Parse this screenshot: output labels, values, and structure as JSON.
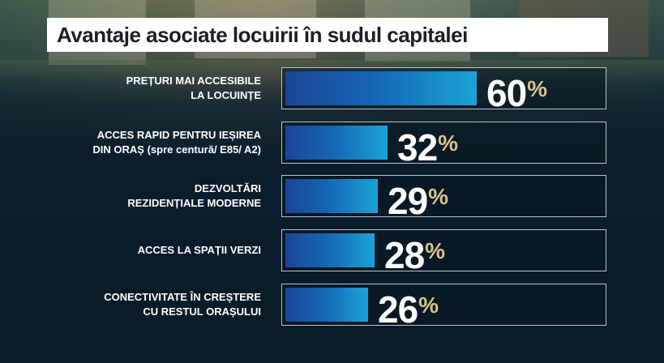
{
  "title": "Avantaje asociate locuirii în sudul capitalei",
  "colors": {
    "bar_start": "#1b4596",
    "bar_end": "#1aa3d6",
    "percent_sign": "#d8c48e",
    "background": "#0b1d2b"
  },
  "chart_data": {
    "type": "bar",
    "orientation": "horizontal",
    "title": "Avantaje asociate locuirii în sudul capitalei",
    "unit": "%",
    "ylim": [
      0,
      100
    ],
    "categories": [
      {
        "line1": "PREȚURI MAI ACCESIBILE",
        "line2": "LA LOCUINȚE",
        "line2_extra": ""
      },
      {
        "line1": "ACCES RAPID PENTRU IEȘIREA",
        "line2": "DIN ORAȘ",
        "line2_extra": " (spre centură/ E85/ A2)"
      },
      {
        "line1": "DEZVOLTĂRI",
        "line2": "REZIDENȚIALE MODERNE",
        "line2_extra": ""
      },
      {
        "line1": "ACCES LA SPAȚII VERZI",
        "line2": "",
        "line2_extra": ""
      },
      {
        "line1": "CONECTIVITATE ÎN CREȘTERE",
        "line2": "CU RESTUL ORAȘULUI",
        "line2_extra": ""
      }
    ],
    "values": [
      60,
      32,
      29,
      28,
      26
    ]
  }
}
